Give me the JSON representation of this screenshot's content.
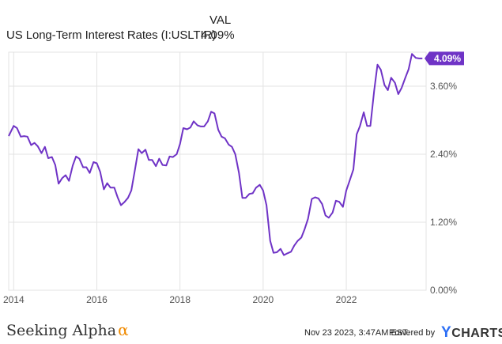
{
  "legend": {
    "column_header": "VAL",
    "series_name": "US Long-Term Interest Rates (I:USLTIR)",
    "series_value": "4.09%"
  },
  "colors": {
    "line": "#6f33c6",
    "grid": "#e3e3e3",
    "badge": "#6f33c6"
  },
  "chart_data": {
    "type": "line",
    "title": "",
    "xlabel": "",
    "ylabel": "",
    "ylim": [
      0,
      4.2
    ],
    "y_ticks": [
      0.0,
      1.2,
      2.4,
      3.6
    ],
    "y_tick_labels": [
      "0.00%",
      "1.20%",
      "2.40%",
      "3.60%"
    ],
    "x_ticks": [
      2014,
      2016,
      2018,
      2020,
      2022
    ],
    "x_tick_labels": [
      "2014",
      "2016",
      "2018",
      "2020",
      "2022"
    ],
    "grid": true,
    "last_value_label": "4.09%",
    "series": [
      {
        "name": "US Long-Term Interest Rates (I:USLTIR)",
        "x": [
          2013.88,
          2014.0,
          2014.08,
          2014.17,
          2014.25,
          2014.33,
          2014.42,
          2014.5,
          2014.58,
          2014.67,
          2014.75,
          2014.83,
          2014.92,
          2015.0,
          2015.08,
          2015.17,
          2015.25,
          2015.33,
          2015.42,
          2015.5,
          2015.58,
          2015.67,
          2015.75,
          2015.83,
          2015.92,
          2016.0,
          2016.08,
          2016.17,
          2016.25,
          2016.33,
          2016.42,
          2016.5,
          2016.58,
          2016.67,
          2016.75,
          2016.83,
          2016.92,
          2017.0,
          2017.08,
          2017.17,
          2017.25,
          2017.33,
          2017.42,
          2017.5,
          2017.58,
          2017.67,
          2017.75,
          2017.83,
          2017.92,
          2018.0,
          2018.08,
          2018.17,
          2018.25,
          2018.33,
          2018.42,
          2018.5,
          2018.58,
          2018.67,
          2018.75,
          2018.83,
          2018.92,
          2019.0,
          2019.08,
          2019.17,
          2019.25,
          2019.33,
          2019.42,
          2019.5,
          2019.58,
          2019.67,
          2019.75,
          2019.83,
          2019.92,
          2020.0,
          2020.08,
          2020.17,
          2020.25,
          2020.33,
          2020.42,
          2020.5,
          2020.58,
          2020.67,
          2020.75,
          2020.83,
          2020.92,
          2021.0,
          2021.08,
          2021.17,
          2021.25,
          2021.33,
          2021.42,
          2021.5,
          2021.58,
          2021.67,
          2021.75,
          2021.83,
          2021.92,
          2022.0,
          2022.08,
          2022.17,
          2022.25,
          2022.33,
          2022.42,
          2022.5,
          2022.58,
          2022.67,
          2022.75,
          2022.83,
          2022.92,
          2023.0,
          2023.08,
          2023.17,
          2023.25,
          2023.33,
          2023.42,
          2023.5,
          2023.58,
          2023.67,
          2023.75,
          2023.83
        ],
        "values": [
          2.72,
          2.9,
          2.86,
          2.71,
          2.72,
          2.71,
          2.56,
          2.6,
          2.54,
          2.42,
          2.53,
          2.33,
          2.35,
          2.21,
          1.88,
          1.98,
          2.03,
          1.93,
          2.2,
          2.36,
          2.32,
          2.17,
          2.17,
          2.07,
          2.26,
          2.24,
          2.09,
          1.78,
          1.89,
          1.81,
          1.81,
          1.64,
          1.5,
          1.56,
          1.63,
          1.76,
          2.14,
          2.49,
          2.42,
          2.48,
          2.3,
          2.3,
          2.19,
          2.32,
          2.21,
          2.2,
          2.36,
          2.35,
          2.4,
          2.58,
          2.86,
          2.84,
          2.87,
          2.98,
          2.91,
          2.89,
          2.89,
          2.98,
          3.15,
          3.12,
          2.83,
          2.71,
          2.68,
          2.57,
          2.53,
          2.4,
          2.07,
          1.63,
          1.63,
          1.7,
          1.71,
          1.81,
          1.86,
          1.76,
          1.5,
          0.87,
          0.66,
          0.67,
          0.73,
          0.62,
          0.65,
          0.68,
          0.79,
          0.87,
          0.93,
          1.08,
          1.26,
          1.61,
          1.64,
          1.62,
          1.52,
          1.32,
          1.28,
          1.37,
          1.58,
          1.56,
          1.47,
          1.76,
          1.93,
          2.13,
          2.75,
          2.9,
          3.14,
          2.9,
          2.9,
          3.52,
          3.98,
          3.89,
          3.62,
          3.53,
          3.75,
          3.66,
          3.46,
          3.57,
          3.75,
          3.9,
          4.17,
          4.1,
          4.09,
          4.09
        ]
      }
    ]
  },
  "footer": {
    "brand_name": "Seeking Alpha",
    "brand_symbol": "α",
    "date_text": "Nov 23 2023, 3:47AM EST.",
    "powered_text": "Powered by",
    "logo_y": "Y",
    "logo_rest": "CHARTS"
  }
}
